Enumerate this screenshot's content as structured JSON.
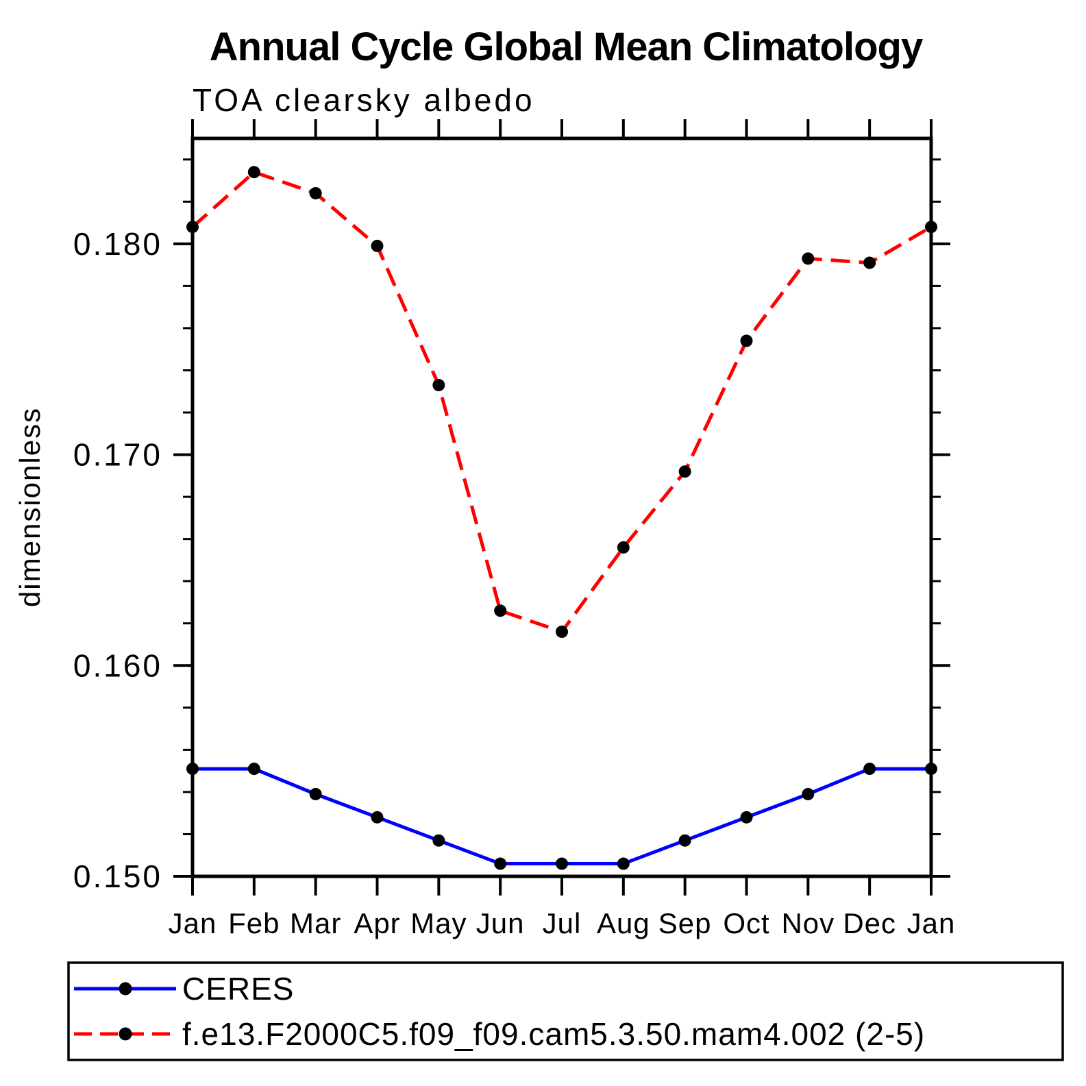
{
  "title": "Annual Cycle Global Mean Climatology",
  "subtitle": "TOA clearsky albedo",
  "chart_data": {
    "type": "line",
    "title": "Annual Cycle Global Mean Climatology",
    "subtitle": "TOA clearsky albedo",
    "xlabel": "",
    "ylabel": "dimensionless",
    "categories": [
      "Jan",
      "Feb",
      "Mar",
      "Apr",
      "May",
      "Jun",
      "Jul",
      "Aug",
      "Sep",
      "Oct",
      "Nov",
      "Dec",
      "Jan"
    ],
    "ylim": [
      0.15,
      0.185
    ],
    "yticks_major": [
      {
        "value": 0.15,
        "label": "0.150"
      },
      {
        "value": 0.16,
        "label": "0.160"
      },
      {
        "value": 0.17,
        "label": "0.170"
      },
      {
        "value": 0.18,
        "label": "0.180"
      }
    ],
    "yticks_minor": [
      0.152,
      0.154,
      0.156,
      0.158,
      0.162,
      0.164,
      0.166,
      0.168,
      0.172,
      0.174,
      0.176,
      0.178,
      0.182,
      0.184
    ],
    "grid": false,
    "legend_position": "bottom",
    "marker": "circle",
    "marker_color": "#000000",
    "series": [
      {
        "name": "CERES",
        "color": "#0000ff",
        "style": "solid",
        "values": [
          0.1551,
          0.1551,
          0.1539,
          0.1528,
          0.1517,
          0.1506,
          0.1506,
          0.1506,
          0.1517,
          0.1528,
          0.1539,
          0.1551,
          0.1551
        ]
      },
      {
        "name": "f.e13.F2000C5.f09_f09.cam5.3.50.mam4.002 (2-5)",
        "color": "#ff0000",
        "style": "dashed",
        "values": [
          0.1808,
          0.1834,
          0.1824,
          0.1799,
          0.1733,
          0.1626,
          0.1616,
          0.1656,
          0.1692,
          0.1754,
          0.1793,
          0.1791,
          0.1808
        ]
      }
    ]
  },
  "colors": {
    "background": "#ffffff",
    "axis": "#000000",
    "series_ceres": "#0000ff",
    "series_model": "#ff0000",
    "marker": "#000000"
  }
}
